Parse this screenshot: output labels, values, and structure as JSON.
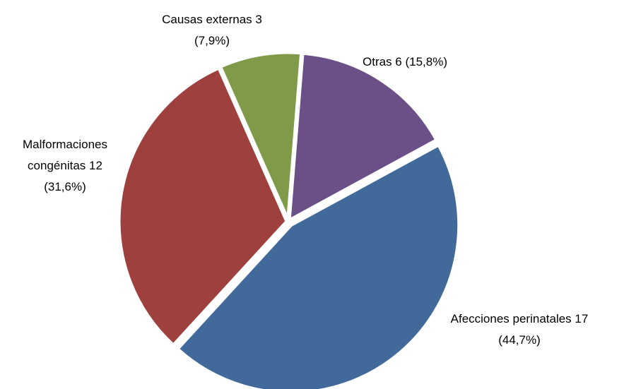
{
  "chart_data": {
    "type": "pie",
    "categories": [
      "Otras",
      "Afecciones perinatales",
      "Malformaciones congénitas",
      "Causas externas"
    ],
    "values": [
      6,
      17,
      12,
      3
    ],
    "value_labels": [
      "6 (15,8%)",
      "17 (44,7%)",
      "12 (31,6%)",
      "3 (7,9%)"
    ],
    "colors": [
      "#6a5086",
      "#41699a",
      "#9e413e",
      "#7f9a48"
    ]
  }
}
